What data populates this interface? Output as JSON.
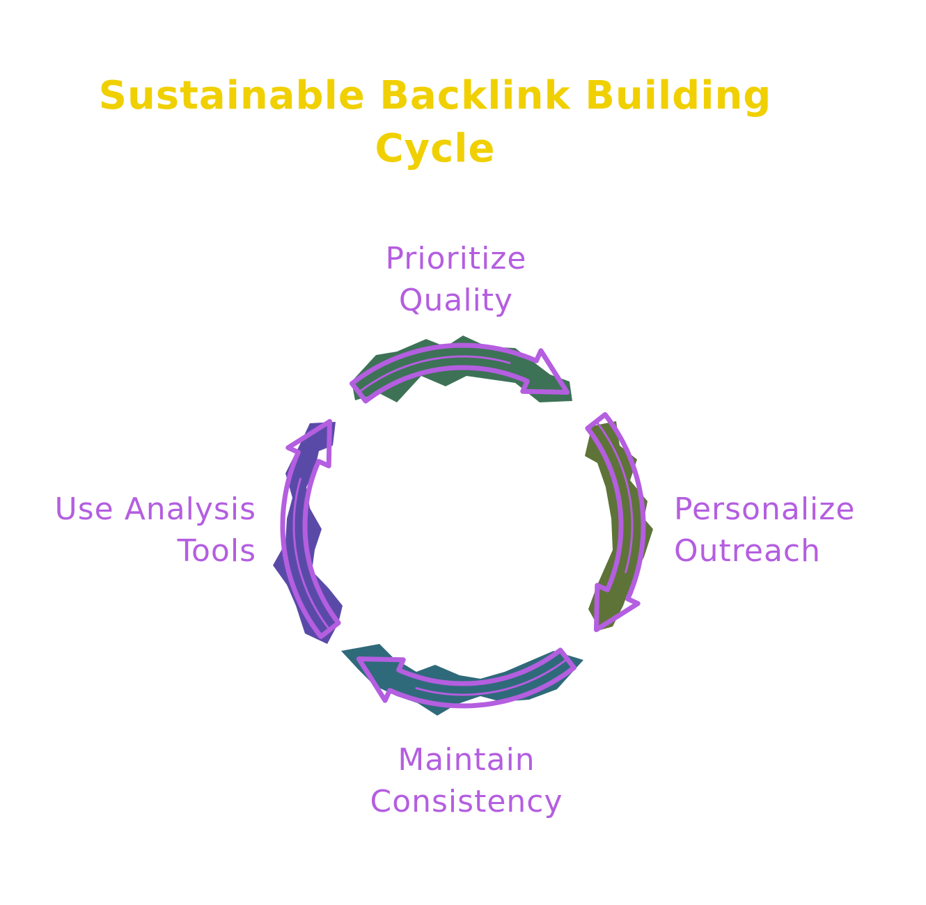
{
  "diagram": {
    "title_lines": [
      "Sustainable Backlink Building",
      "Cycle"
    ],
    "steps": [
      {
        "id": "prioritize",
        "lines": [
          "Prioritize",
          "Quality"
        ]
      },
      {
        "id": "personalize",
        "lines": [
          "Personalize",
          "Outreach"
        ]
      },
      {
        "id": "maintain",
        "lines": [
          "Maintain",
          "Consistency"
        ]
      },
      {
        "id": "analysis",
        "lines": [
          "Use Analysis",
          "Tools"
        ]
      }
    ]
  },
  "colors": {
    "title": "#f0d000",
    "label": "#b45ee0",
    "arrow_outline": "#b45ee0",
    "segment_top": "#3d7256",
    "segment_right": "#5e7338",
    "segment_bottom": "#2f6a7a",
    "segment_left": "#5a4aa8"
  }
}
